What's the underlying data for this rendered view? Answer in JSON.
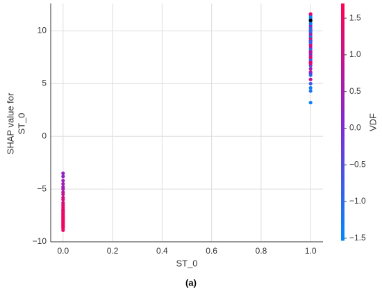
{
  "chart_data": {
    "type": "scatter",
    "ylabel": [
      "SHAP value for",
      "ST_0"
    ],
    "xlabel": "ST_0",
    "colorbar_label": "VDF",
    "caption": "(a)",
    "xlim": [
      -0.05,
      1.05
    ],
    "ylim": [
      -10,
      12.6
    ],
    "clim": [
      -1.53,
      1.7
    ],
    "grid": true,
    "xticks": [
      {
        "value": 0,
        "label": "0.0"
      },
      0.2,
      0.4,
      0.6,
      0.8,
      {
        "value": 1,
        "label": "1.0"
      }
    ],
    "yticks": [
      {
        "value": -10,
        "label": "−10"
      },
      {
        "value": -5,
        "label": "−5"
      },
      0,
      5,
      10
    ],
    "cticks": [
      {
        "value": -1.5,
        "label": "−1.5"
      },
      {
        "value": -1,
        "label": "−1.0"
      },
      {
        "value": -0.5,
        "label": "−0.5"
      },
      {
        "value": 0,
        "label": "0.0"
      },
      0.5,
      {
        "value": 1,
        "label": "1.0"
      },
      1.5
    ],
    "x": [
      0,
      0,
      0,
      0,
      0,
      0,
      0,
      0,
      0,
      0,
      0,
      0,
      0,
      0,
      0,
      0,
      0,
      0,
      0,
      0,
      0,
      0,
      0,
      0,
      0,
      0,
      0,
      0,
      0,
      0,
      0,
      0,
      0,
      1,
      1,
      1,
      1,
      1,
      1,
      1,
      1,
      1,
      1,
      1,
      1,
      1,
      1,
      1,
      1,
      1,
      1,
      1,
      1,
      1,
      1,
      1,
      1,
      1,
      1,
      1,
      1,
      1,
      1,
      1,
      1,
      1,
      1,
      1,
      1,
      1,
      1,
      1,
      1
    ],
    "y": [
      -3.5,
      -3.8,
      -4.2,
      -4.5,
      -4.8,
      -5.0,
      -5.3,
      -5.5,
      -5.8,
      -6.0,
      -6.3,
      -6.5,
      -6.7,
      -6.9,
      -7.0,
      -7.1,
      -7.2,
      -7.3,
      -7.4,
      -7.5,
      -7.6,
      -7.7,
      -7.8,
      -7.9,
      -8.0,
      -8.1,
      -8.2,
      -8.3,
      -8.4,
      -8.5,
      -8.6,
      -8.7,
      -8.9,
      3.2,
      4.3,
      4.6,
      5.0,
      5.4,
      5.8,
      6.1,
      6.4,
      6.7,
      6.9,
      7.1,
      7.3,
      7.5,
      7.7,
      7.9,
      8.1,
      8.3,
      8.5,
      8.7,
      8.9,
      9.1,
      9.3,
      9.5,
      9.7,
      9.9,
      10.1,
      10.3,
      10.5,
      10.7,
      10.9,
      11.1,
      11.3,
      11.5,
      11.6,
      6.0,
      7.0,
      8.0,
      9.0,
      10.0,
      11.0
    ],
    "c": [
      0.3,
      0.2,
      0.4,
      0.5,
      0.3,
      0.6,
      0.8,
      0.9,
      1.1,
      1.2,
      1.0,
      1.3,
      1.4,
      1.5,
      1.2,
      1.6,
      1.4,
      1.5,
      1.3,
      1.6,
      1.5,
      1.4,
      1.6,
      1.5,
      1.6,
      1.4,
      1.5,
      1.6,
      1.3,
      1.5,
      1.6,
      1.4,
      1.5,
      -1.4,
      -1.2,
      -1.3,
      -0.8,
      0.9,
      -1.1,
      1.2,
      0.5,
      -0.6,
      1.3,
      0.2,
      -1.0,
      1.4,
      0.8,
      -0.3,
      1.1,
      -1.2,
      0.6,
      1.5,
      -0.9,
      0.1,
      1.2,
      -1.3,
      0.7,
      -0.5,
      1.0,
      -1.1,
      0.4,
      -1.4,
      -1.3,
      -1.2,
      -1.5,
      -1.4,
      1.4,
      -0.2,
      1.3,
      0.9,
      -0.7,
      -1.0
    ]
  }
}
